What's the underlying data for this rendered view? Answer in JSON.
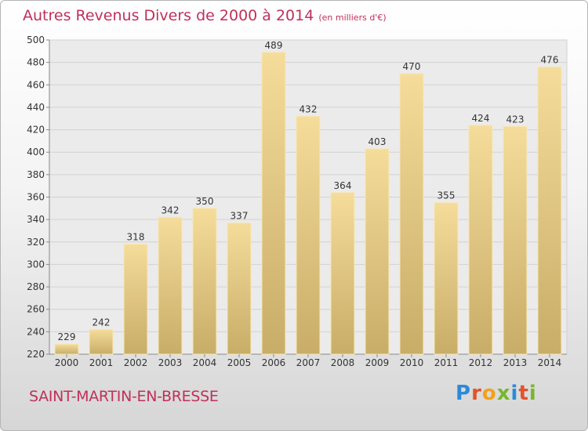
{
  "chart_data": {
    "type": "bar",
    "title": "Autres Revenus Divers de 2000 à 2014",
    "subtitle": "(en milliers d'€)",
    "categories": [
      "2000",
      "2001",
      "2002",
      "2003",
      "2004",
      "2005",
      "2006",
      "2007",
      "2008",
      "2009",
      "2010",
      "2011",
      "2012",
      "2013",
      "2014"
    ],
    "values": [
      229,
      242,
      318,
      342,
      350,
      337,
      489,
      432,
      364,
      403,
      470,
      355,
      424,
      423,
      476
    ],
    "ylim": [
      220,
      500
    ],
    "yticks": [
      220,
      240,
      260,
      280,
      300,
      320,
      340,
      360,
      380,
      400,
      420,
      440,
      460,
      480,
      500
    ],
    "grid": true,
    "xlabel": "",
    "ylabel": ""
  },
  "footer": {
    "commune": "SAINT-MARTIN-EN-BRESSE",
    "logo_letters": [
      "P",
      "r",
      "o",
      "x",
      "i",
      "t",
      "i"
    ]
  },
  "colors": {
    "title": "#c0305a",
    "bar_top": "#f5dc9a",
    "bar_bottom": "#c8ad68",
    "logo": [
      "#2b8ad8",
      "#e0542a",
      "#f2a11d",
      "#76b82a",
      "#2b8ad8",
      "#e0542a",
      "#76b82a"
    ]
  }
}
